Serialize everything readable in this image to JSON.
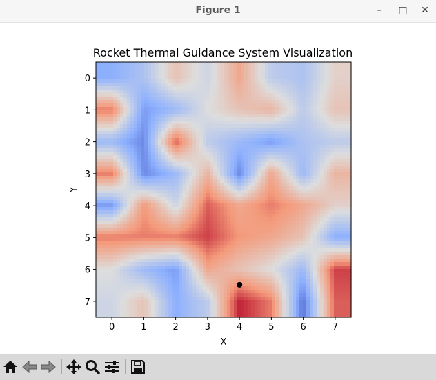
{
  "window": {
    "title": "Figure 1",
    "minimize_glyph": "–",
    "maximize_glyph": "□",
    "close_glyph": "✕"
  },
  "chart_data": {
    "type": "heatmap",
    "title": "Rocket Thermal Guidance System Visualization",
    "xlabel": "X",
    "ylabel": "Y",
    "x_ticks": [
      "0",
      "1",
      "2",
      "3",
      "4",
      "5",
      "6",
      "7"
    ],
    "y_ticks": [
      "0",
      "1",
      "2",
      "3",
      "4",
      "5",
      "6",
      "7"
    ],
    "colormap": "coolwarm",
    "interpolation": "bilinear",
    "grid": false,
    "values": [
      [
        0.25,
        0.35,
        0.6,
        0.45,
        0.7,
        0.4,
        0.35,
        0.55
      ],
      [
        0.8,
        0.2,
        0.3,
        0.5,
        0.6,
        0.65,
        0.4,
        0.6
      ],
      [
        0.3,
        0.15,
        0.85,
        0.4,
        0.3,
        0.2,
        0.35,
        0.4
      ],
      [
        0.8,
        0.15,
        0.3,
        0.65,
        0.15,
        0.7,
        0.3,
        0.65
      ],
      [
        0.2,
        0.75,
        0.45,
        0.85,
        0.7,
        0.8,
        0.7,
        0.55
      ],
      [
        0.8,
        0.8,
        0.8,
        0.9,
        0.75,
        0.7,
        0.6,
        0.25
      ],
      [
        0.5,
        0.3,
        0.2,
        0.7,
        0.6,
        0.5,
        0.3,
        0.9
      ],
      [
        0.45,
        0.6,
        0.25,
        0.4,
        0.95,
        0.8,
        0.1,
        0.85
      ]
    ],
    "marker": {
      "x": 4,
      "y": 7,
      "color": "#000000"
    }
  },
  "toolbar": {
    "buttons": [
      {
        "name": "home-button",
        "icon": "home-icon"
      },
      {
        "name": "back-button",
        "icon": "arrow-left-icon"
      },
      {
        "name": "forward-button",
        "icon": "arrow-right-icon"
      },
      {
        "name": "pan-button",
        "icon": "move-icon"
      },
      {
        "name": "zoom-button",
        "icon": "magnifier-icon"
      },
      {
        "name": "configure-subplots-button",
        "icon": "sliders-icon"
      },
      {
        "name": "save-button",
        "icon": "floppy-icon"
      }
    ]
  }
}
